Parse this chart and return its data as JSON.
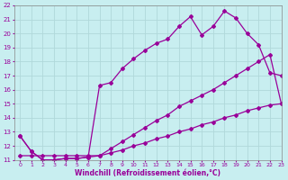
{
  "xlabel": "Windchill (Refroidissement éolien,°C)",
  "bg_color": "#c8eef0",
  "grid_color": "#b0d8da",
  "line_color": "#990099",
  "xlim": [
    -0.5,
    23
  ],
  "ylim": [
    11,
    22
  ],
  "xticks": [
    0,
    1,
    2,
    3,
    4,
    5,
    6,
    7,
    8,
    9,
    10,
    11,
    12,
    13,
    14,
    15,
    16,
    17,
    18,
    19,
    20,
    21,
    22,
    23
  ],
  "yticks": [
    11,
    12,
    13,
    14,
    15,
    16,
    17,
    18,
    19,
    20,
    21,
    22
  ],
  "line1_x": [
    0,
    1,
    2,
    3,
    4,
    5,
    6,
    7,
    8,
    9,
    10,
    11,
    12,
    13,
    14,
    15,
    16,
    17,
    18,
    19,
    20,
    21,
    22,
    23
  ],
  "line1_y": [
    12.7,
    11.6,
    11.0,
    11.0,
    11.1,
    11.1,
    11.2,
    16.3,
    16.5,
    17.5,
    18.2,
    18.8,
    19.3,
    19.6,
    20.5,
    21.2,
    19.9,
    20.5,
    21.6,
    21.1,
    20.0,
    19.2,
    17.2,
    17.0
  ],
  "line2_x": [
    0,
    1,
    2,
    3,
    4,
    5,
    6,
    7,
    8,
    9,
    10,
    11,
    12,
    13,
    14,
    15,
    16,
    17,
    18,
    19,
    20,
    21,
    22,
    23
  ],
  "line2_y": [
    12.7,
    11.6,
    11.0,
    11.0,
    11.1,
    11.1,
    11.2,
    11.3,
    11.8,
    12.3,
    12.8,
    13.3,
    13.8,
    14.2,
    14.8,
    15.2,
    15.6,
    16.0,
    16.5,
    17.0,
    17.5,
    18.0,
    18.5,
    15.0
  ],
  "line3_x": [
    0,
    1,
    2,
    3,
    4,
    5,
    6,
    7,
    8,
    9,
    10,
    11,
    12,
    13,
    14,
    15,
    16,
    17,
    18,
    19,
    20,
    21,
    22,
    23
  ],
  "line3_y": [
    11.3,
    11.3,
    11.3,
    11.3,
    11.3,
    11.3,
    11.3,
    11.3,
    11.5,
    11.7,
    12.0,
    12.2,
    12.5,
    12.7,
    13.0,
    13.2,
    13.5,
    13.7,
    14.0,
    14.2,
    14.5,
    14.7,
    14.9,
    15.0
  ],
  "marker": "D",
  "markersize": 2.0,
  "linewidth": 0.9
}
